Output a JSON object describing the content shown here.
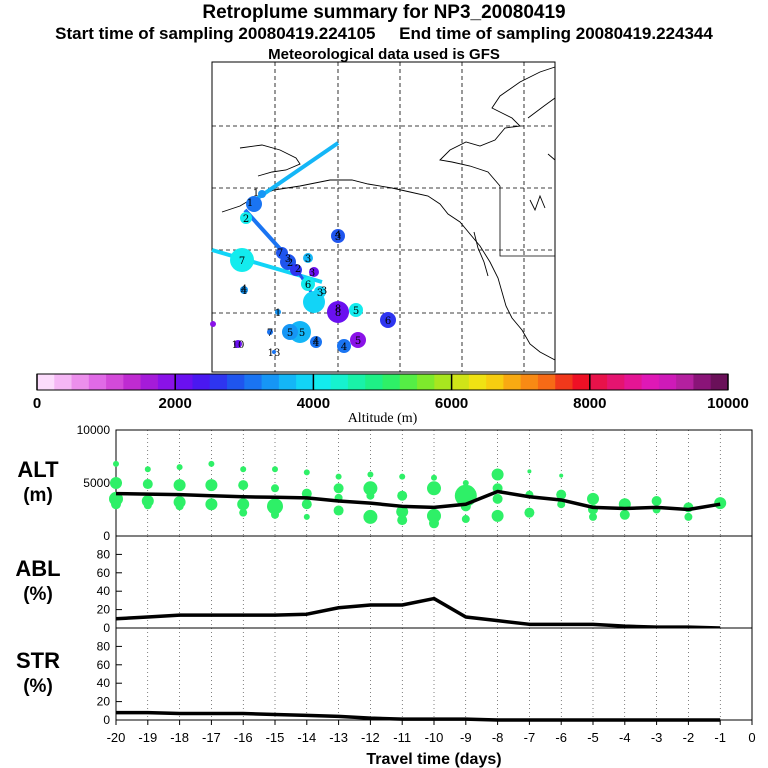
{
  "header": {
    "title": "Retroplume summary for NP3_20080419",
    "start_label": "Start time of sampling 20080419.224105",
    "end_label": "End time of sampling 20080419.224344",
    "met_label": "Meteorological data used is GFS"
  },
  "map": {
    "point_labels": [
      "1",
      "1",
      "2",
      "7",
      "7",
      "2",
      "2",
      "3",
      "3",
      "4",
      "6",
      "3",
      "3",
      "3",
      "8",
      "5",
      "6",
      "5",
      "4",
      "4",
      "5",
      "3",
      "1",
      "7",
      "10",
      "13",
      "4",
      "4",
      "5",
      "4",
      "8"
    ]
  },
  "colorbar": {
    "title": "Altitude (m)",
    "tick_labels": [
      "0",
      "2000",
      "4000",
      "6000",
      "8000",
      "10000"
    ],
    "min": 0,
    "max": 10000,
    "colors": [
      "#fcdcfc",
      "#f5b7f5",
      "#ec8fec",
      "#e06ae6",
      "#d34ad9",
      "#bf2bd1",
      "#a51bd9",
      "#8a12e8",
      "#6a10f0",
      "#4a18f0",
      "#2e35f0",
      "#1f55ee",
      "#1a74f2",
      "#1696f5",
      "#14b6f7",
      "#12d4f7",
      "#13ecee",
      "#16f2cf",
      "#19f2a8",
      "#1ef086",
      "#2ef067",
      "#55ee45",
      "#7eea2c",
      "#a8e61f",
      "#d0e418",
      "#f0e213",
      "#f7cd10",
      "#f8aa12",
      "#f88a14",
      "#f76a16",
      "#f1381b",
      "#ee1025",
      "#e8124a",
      "#e51470",
      "#e41594",
      "#df18b6",
      "#ce1ab8",
      "#b4209f",
      "#8a1478",
      "#6a1059"
    ]
  },
  "chart_data": {
    "type": "line",
    "x": [
      -20,
      -19,
      -18,
      -17,
      -16,
      -15,
      -14,
      -13,
      -12,
      -11,
      -10,
      -9,
      -8,
      -7,
      -6,
      -5,
      -4,
      -3,
      -2,
      -1
    ],
    "xlim": [
      -20,
      0
    ],
    "xticks": [
      "-20",
      "-19",
      "-18",
      "-17",
      "-16",
      "-15",
      "-14",
      "-13",
      "-12",
      "-11",
      "-10",
      "-9",
      "-8",
      "-7",
      "-6",
      "-5",
      "-4",
      "-3",
      "-2",
      "-1",
      "0"
    ],
    "xlabel": "Travel time (days)",
    "panels": [
      {
        "name": "ALT",
        "ylabel_line1": "ALT",
        "ylabel_line2": "(m)",
        "ylim": [
          0,
          10000
        ],
        "yticks": [
          "10000",
          "5000",
          "0"
        ],
        "ytick_values": [
          10000,
          5000,
          0
        ],
        "mean": [
          4000,
          3950,
          3900,
          3800,
          3700,
          3650,
          3600,
          3300,
          3100,
          2800,
          2700,
          3000,
          4200,
          3700,
          3400,
          2700,
          2600,
          2700,
          2500,
          3000
        ],
        "bubbles": [
          {
            "day": -20,
            "alt": 6800,
            "s": 3
          },
          {
            "day": -20,
            "alt": 5000,
            "s": 6
          },
          {
            "day": -20,
            "alt": 3500,
            "s": 7
          },
          {
            "day": -20,
            "alt": 3000,
            "s": 5
          },
          {
            "day": -19,
            "alt": 6300,
            "s": 3
          },
          {
            "day": -19,
            "alt": 4900,
            "s": 5
          },
          {
            "day": -19,
            "alt": 3300,
            "s": 6
          },
          {
            "day": -19,
            "alt": 2900,
            "s": 4
          },
          {
            "day": -18,
            "alt": 6500,
            "s": 3
          },
          {
            "day": -18,
            "alt": 4800,
            "s": 6
          },
          {
            "day": -18,
            "alt": 3200,
            "s": 6
          },
          {
            "day": -18,
            "alt": 2800,
            "s": 4
          },
          {
            "day": -17,
            "alt": 6800,
            "s": 3
          },
          {
            "day": -17,
            "alt": 4800,
            "s": 6
          },
          {
            "day": -17,
            "alt": 3000,
            "s": 6
          },
          {
            "day": -16,
            "alt": 6300,
            "s": 3
          },
          {
            "day": -16,
            "alt": 4800,
            "s": 5
          },
          {
            "day": -16,
            "alt": 3000,
            "s": 6
          },
          {
            "day": -16,
            "alt": 2200,
            "s": 4
          },
          {
            "day": -15,
            "alt": 6300,
            "s": 3
          },
          {
            "day": -15,
            "alt": 4500,
            "s": 4
          },
          {
            "day": -15,
            "alt": 2800,
            "s": 8
          },
          {
            "day": -15,
            "alt": 2000,
            "s": 4
          },
          {
            "day": -14,
            "alt": 6000,
            "s": 3
          },
          {
            "day": -14,
            "alt": 4000,
            "s": 5
          },
          {
            "day": -14,
            "alt": 3000,
            "s": 5
          },
          {
            "day": -14,
            "alt": 1800,
            "s": 3
          },
          {
            "day": -13,
            "alt": 5600,
            "s": 3
          },
          {
            "day": -13,
            "alt": 4500,
            "s": 5
          },
          {
            "day": -13,
            "alt": 3600,
            "s": 4
          },
          {
            "day": -13,
            "alt": 2400,
            "s": 5
          },
          {
            "day": -12,
            "alt": 5800,
            "s": 3
          },
          {
            "day": -12,
            "alt": 4500,
            "s": 7
          },
          {
            "day": -12,
            "alt": 3800,
            "s": 4
          },
          {
            "day": -12,
            "alt": 1800,
            "s": 7
          },
          {
            "day": -11,
            "alt": 5600,
            "s": 3
          },
          {
            "day": -11,
            "alt": 3800,
            "s": 5
          },
          {
            "day": -11,
            "alt": 2300,
            "s": 6
          },
          {
            "day": -11,
            "alt": 1500,
            "s": 5
          },
          {
            "day": -10,
            "alt": 5500,
            "s": 3
          },
          {
            "day": -10,
            "alt": 4500,
            "s": 7
          },
          {
            "day": -10,
            "alt": 1900,
            "s": 7
          },
          {
            "day": -10,
            "alt": 1200,
            "s": 5
          },
          {
            "day": -9,
            "alt": 5000,
            "s": 3
          },
          {
            "day": -9,
            "alt": 3800,
            "s": 11
          },
          {
            "day": -9,
            "alt": 2800,
            "s": 5
          },
          {
            "day": -9,
            "alt": 1600,
            "s": 4
          },
          {
            "day": -8,
            "alt": 5800,
            "s": 6
          },
          {
            "day": -8,
            "alt": 4500,
            "s": 5
          },
          {
            "day": -8,
            "alt": 3500,
            "s": 5
          },
          {
            "day": -8,
            "alt": 1900,
            "s": 6
          },
          {
            "day": -7,
            "alt": 6100,
            "s": 2
          },
          {
            "day": -7,
            "alt": 3900,
            "s": 4
          },
          {
            "day": -7,
            "alt": 2200,
            "s": 5
          },
          {
            "day": -6,
            "alt": 5700,
            "s": 2
          },
          {
            "day": -6,
            "alt": 3900,
            "s": 5
          },
          {
            "day": -6,
            "alt": 3000,
            "s": 4
          },
          {
            "day": -5,
            "alt": 3500,
            "s": 6
          },
          {
            "day": -5,
            "alt": 2500,
            "s": 5
          },
          {
            "day": -5,
            "alt": 1800,
            "s": 4
          },
          {
            "day": -4,
            "alt": 3000,
            "s": 6
          },
          {
            "day": -4,
            "alt": 2000,
            "s": 5
          },
          {
            "day": -3,
            "alt": 3300,
            "s": 5
          },
          {
            "day": -3,
            "alt": 2500,
            "s": 4
          },
          {
            "day": -2,
            "alt": 2700,
            "s": 5
          },
          {
            "day": -2,
            "alt": 1800,
            "s": 4
          },
          {
            "day": -1,
            "alt": 3100,
            "s": 6
          }
        ]
      },
      {
        "name": "ABL",
        "ylabel_line1": "ABL",
        "ylabel_line2": "(%)",
        "ylim": [
          0,
          100
        ],
        "yticks": [
          "80",
          "60",
          "40",
          "20",
          "0"
        ],
        "ytick_values": [
          80,
          60,
          40,
          20,
          0
        ],
        "mean": [
          10,
          12,
          14,
          14,
          14,
          14,
          15,
          22,
          25,
          25,
          32,
          12,
          8,
          4,
          4,
          4,
          2,
          1,
          1,
          0
        ]
      },
      {
        "name": "STR",
        "ylabel_line1": "STR",
        "ylabel_line2": "(%)",
        "ylim": [
          0,
          100
        ],
        "yticks": [
          "80",
          "60",
          "40",
          "20",
          "0"
        ],
        "ytick_values": [
          80,
          60,
          40,
          20,
          0
        ],
        "mean": [
          8,
          8,
          7,
          7,
          7,
          6,
          5,
          4,
          2,
          1,
          1,
          1,
          0,
          0,
          0,
          0,
          0,
          0,
          0,
          0
        ]
      }
    ]
  }
}
